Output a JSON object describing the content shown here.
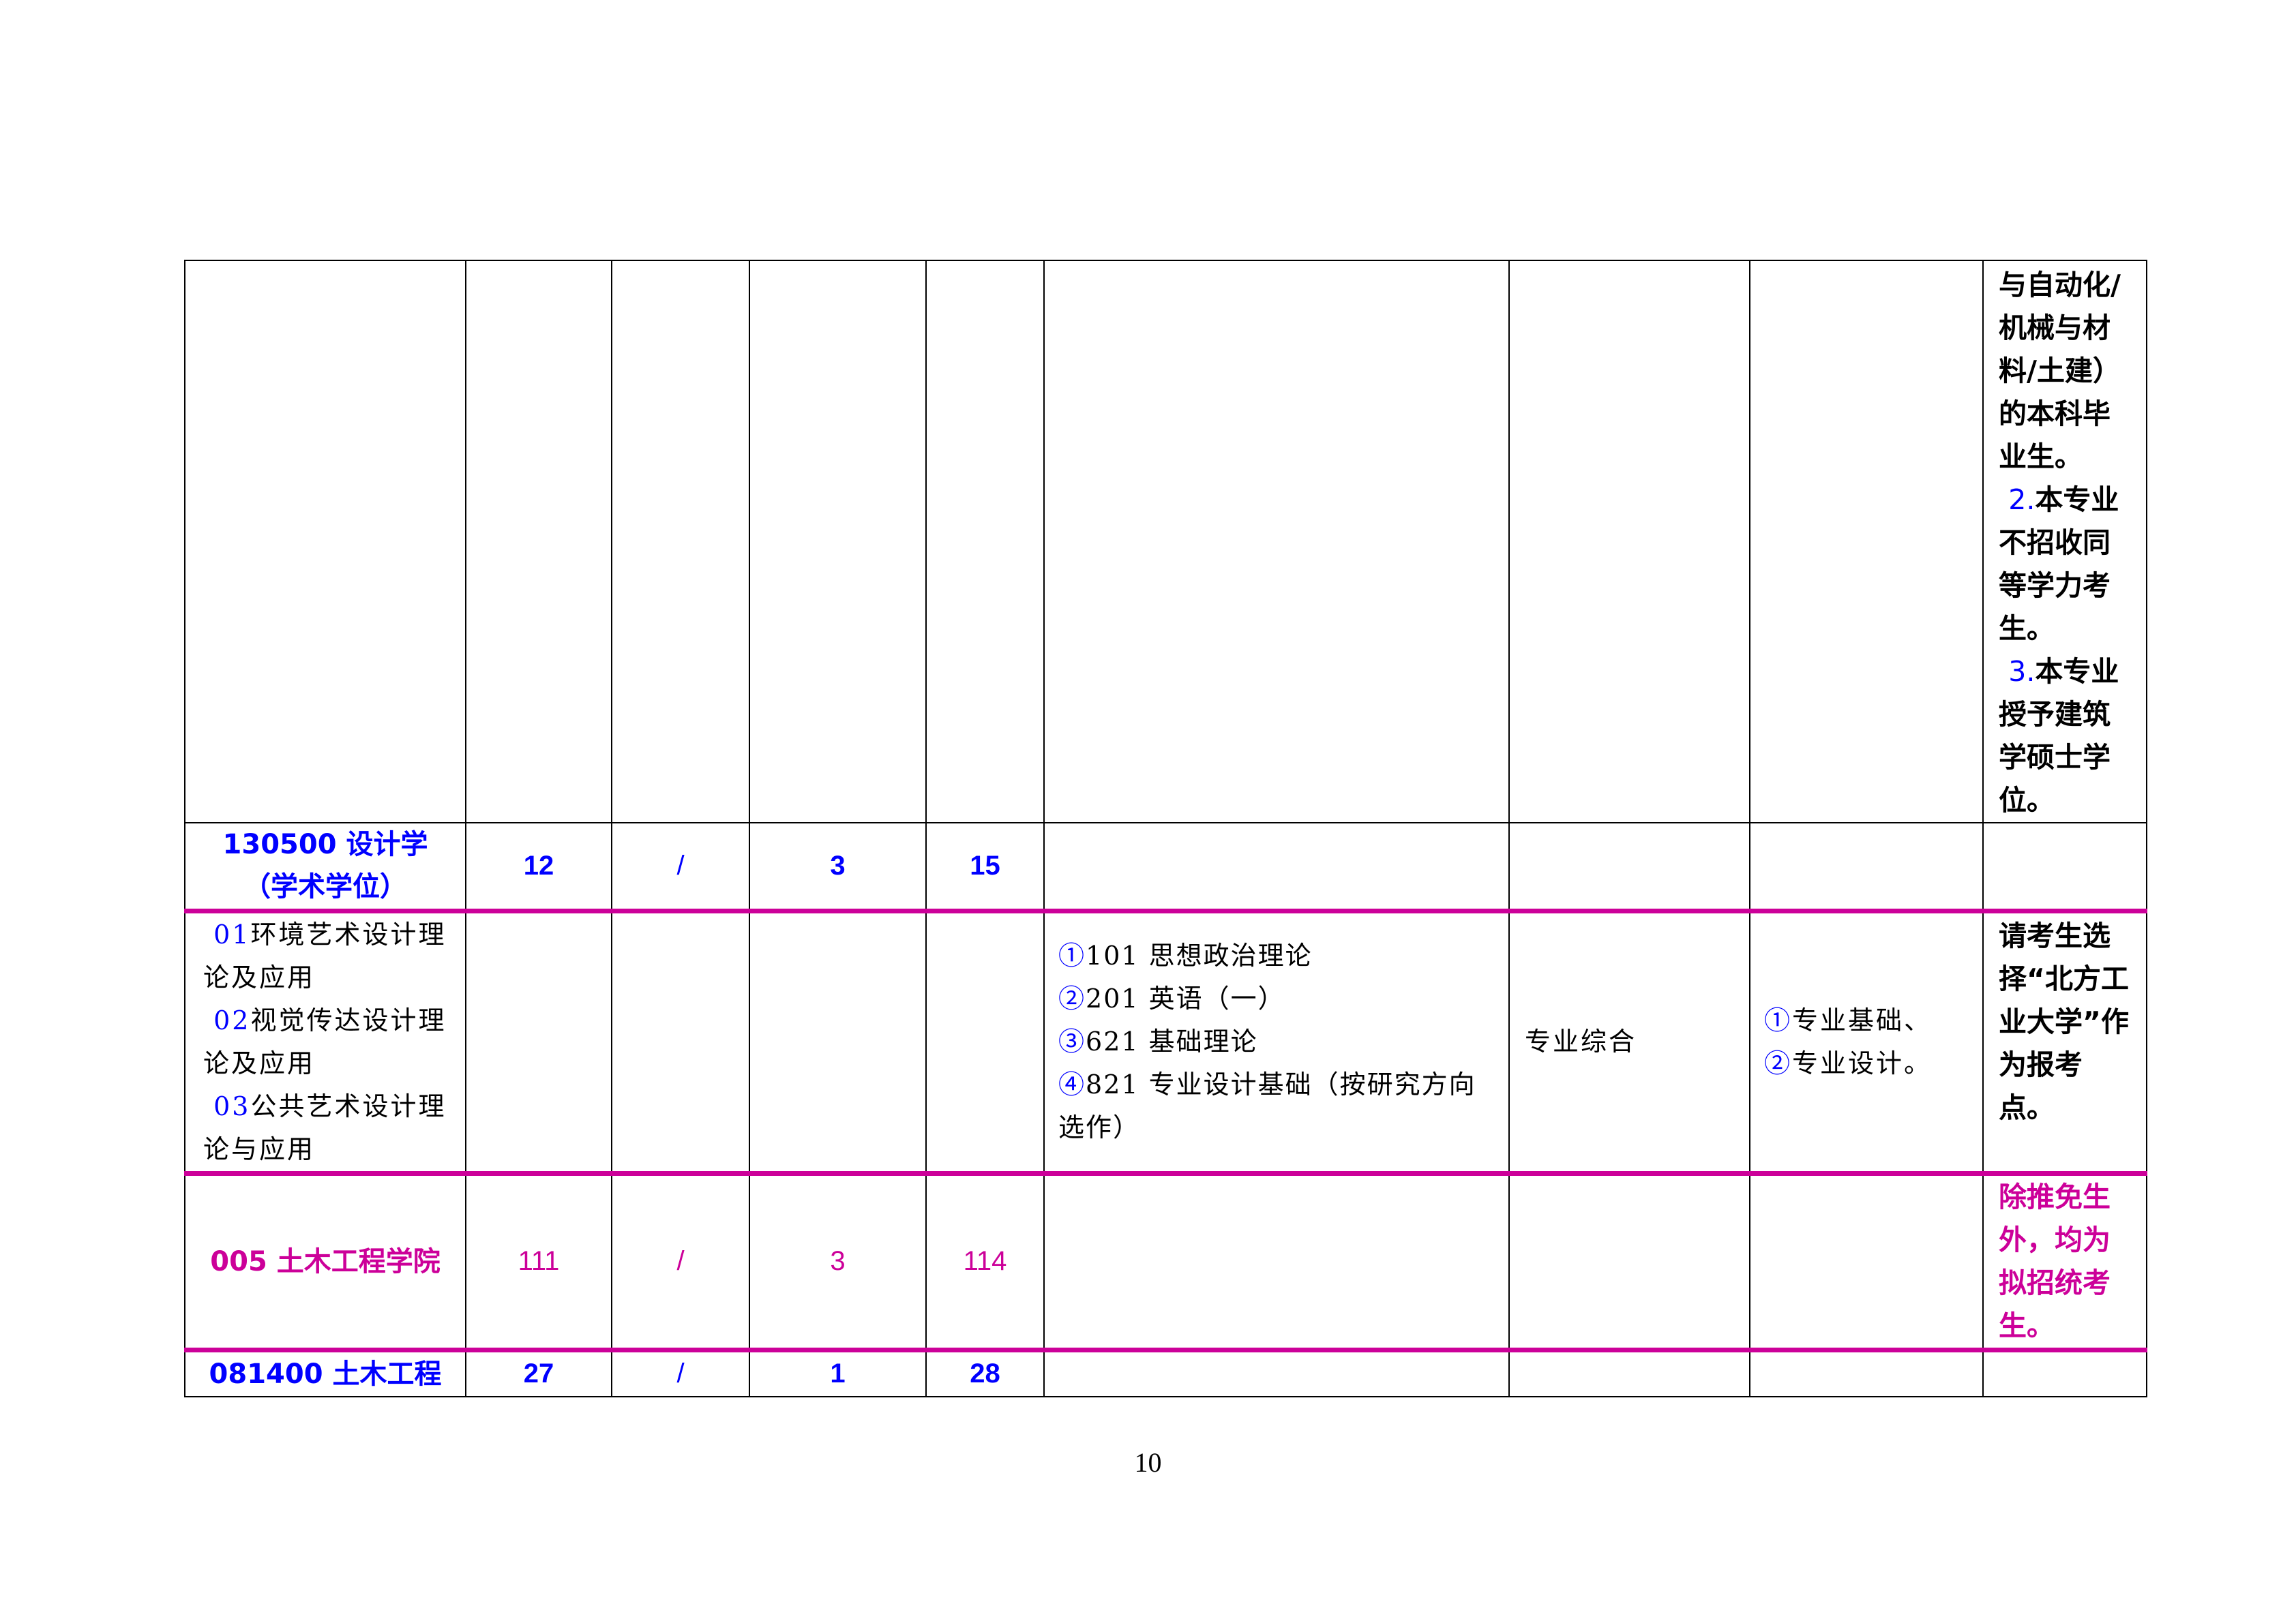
{
  "table": {
    "row0_notes": [
      {
        "text": "与自动化/机械与材料/土建）的本科毕业生。",
        "color": "#000000"
      },
      {
        "num": "2.",
        "text": "本专业不招收同等学力考生。"
      },
      {
        "num": "3.",
        "text": "本专业授予建筑学硕士学位。"
      }
    ],
    "major_design": {
      "code_name": "130500 设计学",
      "type": "（学术学位）",
      "c1": "12",
      "c2": "/",
      "c3": "3",
      "c4": "15"
    },
    "directions": [
      {
        "num": "01",
        "name": "环境艺术设计理论及应用"
      },
      {
        "num": "02",
        "name": "视觉传达设计理论及应用"
      },
      {
        "num": "03",
        "name": "公共艺术设计理论与应用"
      }
    ],
    "exam_subjects": [
      {
        "mark": "①",
        "text": "101 思想政治理论"
      },
      {
        "mark": "②",
        "text": "201 英语（一）"
      },
      {
        "mark": "③",
        "text": "621 基础理论"
      },
      {
        "mark": "④",
        "text": "821 专业设计基础（按研究方向选作）"
      }
    ],
    "retest": "专业综合",
    "same_level": [
      {
        "mark": "①",
        "text": "专业基础、"
      },
      {
        "mark": "②",
        "text": "专业设计。"
      }
    ],
    "design_note": "请考生选择“北方工业大学”作为报考点。",
    "college": {
      "name": "005 土木工程学院",
      "c1": "111",
      "c2": "/",
      "c3": "3",
      "c4": "114",
      "note": "除推免生外，均为拟招统考生。"
    },
    "major_civil": {
      "code_name": "081400 土木工程",
      "c1": "27",
      "c2": "/",
      "c3": "1",
      "c4": "28"
    }
  },
  "page_number": "10",
  "colors": {
    "blue": "#0000ff",
    "magenta": "#cc0099"
  }
}
